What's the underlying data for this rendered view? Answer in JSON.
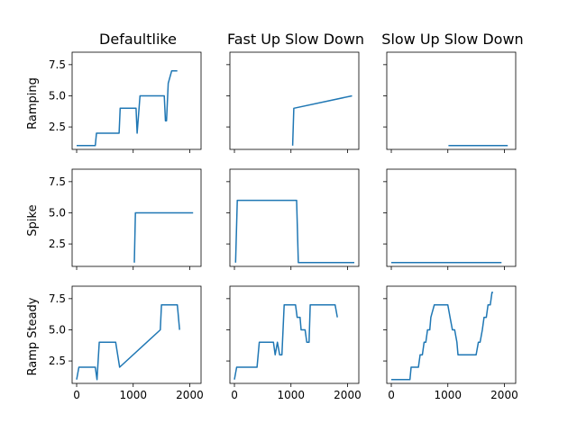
{
  "chart_data": {
    "type": "line",
    "layout": "3x3 grid, shared x and y axes",
    "line_color": "#1f77b4",
    "xlim": [
      -80,
      2200
    ],
    "ylim": [
      0.7,
      8.5
    ],
    "xticks": [
      0,
      1000,
      2000
    ],
    "yticks": [
      2.5,
      5.0,
      7.5
    ],
    "ytick_labels": [
      "2.5",
      "5.0",
      "7.5"
    ],
    "col_titles": [
      "Defaultlike",
      "Fast Up Slow Down",
      "Slow Up Slow Down"
    ],
    "row_labels": [
      "Ramping",
      "Spike",
      "Ramp Steady"
    ],
    "grid": false,
    "panels": [
      [
        {
          "x": [
            0,
            330,
            350,
            750,
            770,
            1050,
            1070,
            1120,
            1200,
            1550,
            1570,
            1590,
            1620,
            1680,
            1780
          ],
          "y": [
            1,
            1,
            2,
            2,
            4,
            4,
            2,
            5,
            5,
            5,
            3,
            3,
            6,
            7,
            7
          ]
        },
        {
          "x": [
            1030,
            1050,
            2080
          ],
          "y": [
            1,
            4,
            5
          ]
        },
        {
          "x": [
            1010,
            2060
          ],
          "y": [
            1,
            1
          ]
        }
      ],
      [
        {
          "x": [
            1020,
            1040,
            2060
          ],
          "y": [
            1,
            5,
            5
          ]
        },
        {
          "x": [
            20,
            50,
            1100,
            1130,
            2120
          ],
          "y": [
            1,
            6,
            6,
            1,
            1
          ]
        },
        {
          "x": [
            0,
            1950
          ],
          "y": [
            1,
            1
          ]
        }
      ],
      [
        {
          "x": [
            0,
            40,
            330,
            360,
            400,
            690,
            760,
            1480,
            1500,
            1780,
            1820
          ],
          "y": [
            1,
            2,
            2,
            1,
            4,
            4,
            2,
            5,
            7,
            7,
            5
          ]
        },
        {
          "x": [
            0,
            40,
            400,
            440,
            690,
            720,
            760,
            800,
            840,
            880,
            1080,
            1110,
            1160,
            1180,
            1250,
            1280,
            1300,
            1320,
            1340,
            1600,
            1620,
            1640,
            1680,
            1720,
            1780,
            1820
          ],
          "y": [
            1,
            2,
            2,
            4,
            4,
            3,
            4,
            3,
            3,
            7,
            7,
            6,
            6,
            5,
            5,
            4,
            4,
            4,
            7,
            7,
            7,
            7,
            7,
            7,
            7,
            6
          ]
        },
        {
          "x": [
            0,
            330,
            350,
            480,
            510,
            550,
            580,
            610,
            640,
            680,
            700,
            760,
            1000,
            1040,
            1080,
            1120,
            1160,
            1180,
            1220,
            1500,
            1540,
            1570,
            1610,
            1640,
            1680,
            1710,
            1750,
            1780,
            1800
          ],
          "y": [
            1,
            1,
            2,
            2,
            3,
            3,
            4,
            4,
            5,
            5,
            6,
            7,
            7,
            6,
            5,
            5,
            4,
            3,
            3,
            3,
            4,
            4,
            5,
            6,
            6,
            7,
            7,
            8,
            8
          ]
        }
      ]
    ]
  }
}
